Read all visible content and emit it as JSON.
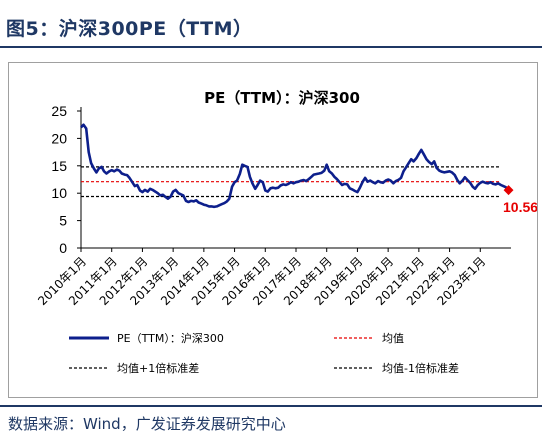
{
  "figure_title": "图5：沪深300PE（TTM）",
  "source_note": "数据来源：Wind，广发证券发展研究中心",
  "colors": {
    "series": "#0d1f8c",
    "mean": "#e60000",
    "band": "#000000",
    "end_marker": "#e60000",
    "title_blue": "#1f3864"
  },
  "chart_data": {
    "type": "line",
    "title": "PE（TTM）：沪深300",
    "xlabel": "",
    "ylabel": "",
    "ylim": [
      0,
      25
    ],
    "yticks": [
      0,
      5,
      10,
      15,
      20,
      25
    ],
    "x_tick_labels": [
      "2010年1月",
      "2011年1月",
      "2012年1月",
      "2013年1月",
      "2014年1月",
      "2015年1月",
      "2016年1月",
      "2017年1月",
      "2018年1月",
      "2019年1月",
      "2020年1月",
      "2021年1月",
      "2022年1月",
      "2023年1月"
    ],
    "x_start_year": 2010,
    "grid": false,
    "legend_position": "bottom",
    "series": [
      {
        "name": "PE（TTM）：沪深300",
        "style": "solid",
        "points": [
          [
            2010.0,
            22.0
          ],
          [
            2010.08,
            22.5
          ],
          [
            2010.17,
            21.8
          ],
          [
            2010.25,
            17.5
          ],
          [
            2010.33,
            15.5
          ],
          [
            2010.42,
            14.5
          ],
          [
            2010.5,
            13.8
          ],
          [
            2010.58,
            14.5
          ],
          [
            2010.67,
            14.8
          ],
          [
            2010.75,
            14.0
          ],
          [
            2010.83,
            13.6
          ],
          [
            2010.92,
            14.0
          ],
          [
            2011.0,
            14.2
          ],
          [
            2011.08,
            14.0
          ],
          [
            2011.17,
            14.3
          ],
          [
            2011.25,
            14.1
          ],
          [
            2011.33,
            13.6
          ],
          [
            2011.42,
            13.4
          ],
          [
            2011.5,
            13.3
          ],
          [
            2011.58,
            12.8
          ],
          [
            2011.67,
            12.0
          ],
          [
            2011.75,
            11.3
          ],
          [
            2011.83,
            11.5
          ],
          [
            2011.92,
            10.5
          ],
          [
            2012.0,
            10.2
          ],
          [
            2012.08,
            10.6
          ],
          [
            2012.17,
            10.3
          ],
          [
            2012.25,
            10.8
          ],
          [
            2012.33,
            10.6
          ],
          [
            2012.42,
            10.3
          ],
          [
            2012.5,
            10.0
          ],
          [
            2012.58,
            9.6
          ],
          [
            2012.67,
            9.7
          ],
          [
            2012.75,
            9.3
          ],
          [
            2012.83,
            9.0
          ],
          [
            2012.92,
            9.4
          ],
          [
            2013.0,
            10.3
          ],
          [
            2013.08,
            10.6
          ],
          [
            2013.17,
            10.0
          ],
          [
            2013.25,
            9.8
          ],
          [
            2013.33,
            9.6
          ],
          [
            2013.42,
            8.6
          ],
          [
            2013.5,
            8.4
          ],
          [
            2013.58,
            8.6
          ],
          [
            2013.67,
            8.5
          ],
          [
            2013.75,
            8.7
          ],
          [
            2013.83,
            8.3
          ],
          [
            2013.92,
            8.1
          ],
          [
            2014.0,
            7.9
          ],
          [
            2014.08,
            7.8
          ],
          [
            2014.17,
            7.6
          ],
          [
            2014.25,
            7.6
          ],
          [
            2014.33,
            7.5
          ],
          [
            2014.42,
            7.6
          ],
          [
            2014.5,
            7.8
          ],
          [
            2014.58,
            8.0
          ],
          [
            2014.67,
            8.2
          ],
          [
            2014.75,
            8.5
          ],
          [
            2014.83,
            9.0
          ],
          [
            2014.92,
            11.2
          ],
          [
            2015.0,
            12.0
          ],
          [
            2015.08,
            12.3
          ],
          [
            2015.17,
            13.5
          ],
          [
            2015.25,
            15.2
          ],
          [
            2015.33,
            15.0
          ],
          [
            2015.42,
            14.8
          ],
          [
            2015.5,
            13.0
          ],
          [
            2015.58,
            11.8
          ],
          [
            2015.67,
            10.8
          ],
          [
            2015.75,
            11.5
          ],
          [
            2015.83,
            12.3
          ],
          [
            2015.92,
            12.0
          ],
          [
            2016.0,
            10.5
          ],
          [
            2016.08,
            10.3
          ],
          [
            2016.17,
            10.9
          ],
          [
            2016.25,
            11.0
          ],
          [
            2016.33,
            10.9
          ],
          [
            2016.42,
            11.0
          ],
          [
            2016.5,
            11.4
          ],
          [
            2016.58,
            11.6
          ],
          [
            2016.67,
            11.5
          ],
          [
            2016.75,
            11.7
          ],
          [
            2016.83,
            12.0
          ],
          [
            2016.92,
            11.8
          ],
          [
            2017.0,
            12.0
          ],
          [
            2017.08,
            12.1
          ],
          [
            2017.17,
            12.3
          ],
          [
            2017.25,
            12.4
          ],
          [
            2017.33,
            12.2
          ],
          [
            2017.42,
            12.6
          ],
          [
            2017.5,
            13.0
          ],
          [
            2017.58,
            13.4
          ],
          [
            2017.67,
            13.5
          ],
          [
            2017.75,
            13.6
          ],
          [
            2017.83,
            13.7
          ],
          [
            2017.92,
            14.1
          ],
          [
            2018.0,
            15.2
          ],
          [
            2018.08,
            14.0
          ],
          [
            2018.17,
            13.6
          ],
          [
            2018.25,
            13.0
          ],
          [
            2018.33,
            12.6
          ],
          [
            2018.42,
            12.0
          ],
          [
            2018.5,
            11.5
          ],
          [
            2018.58,
            11.7
          ],
          [
            2018.67,
            11.6
          ],
          [
            2018.75,
            10.9
          ],
          [
            2018.83,
            10.7
          ],
          [
            2018.92,
            10.4
          ],
          [
            2019.0,
            10.2
          ],
          [
            2019.08,
            11.0
          ],
          [
            2019.17,
            12.1
          ],
          [
            2019.25,
            12.8
          ],
          [
            2019.33,
            12.1
          ],
          [
            2019.42,
            12.3
          ],
          [
            2019.5,
            12.0
          ],
          [
            2019.58,
            11.8
          ],
          [
            2019.67,
            12.2
          ],
          [
            2019.75,
            12.0
          ],
          [
            2019.83,
            11.9
          ],
          [
            2019.92,
            12.3
          ],
          [
            2020.0,
            12.5
          ],
          [
            2020.08,
            12.3
          ],
          [
            2020.17,
            11.8
          ],
          [
            2020.25,
            12.2
          ],
          [
            2020.33,
            12.4
          ],
          [
            2020.42,
            12.8
          ],
          [
            2020.5,
            14.0
          ],
          [
            2020.58,
            14.7
          ],
          [
            2020.67,
            15.5
          ],
          [
            2020.75,
            16.2
          ],
          [
            2020.83,
            15.8
          ],
          [
            2020.92,
            16.4
          ],
          [
            2021.0,
            17.2
          ],
          [
            2021.08,
            17.9
          ],
          [
            2021.17,
            17.0
          ],
          [
            2021.25,
            16.2
          ],
          [
            2021.33,
            15.7
          ],
          [
            2021.42,
            15.3
          ],
          [
            2021.5,
            15.8
          ],
          [
            2021.58,
            14.6
          ],
          [
            2021.67,
            14.1
          ],
          [
            2021.75,
            13.9
          ],
          [
            2021.83,
            13.8
          ],
          [
            2021.92,
            13.9
          ],
          [
            2022.0,
            14.0
          ],
          [
            2022.08,
            13.8
          ],
          [
            2022.17,
            13.3
          ],
          [
            2022.25,
            12.4
          ],
          [
            2022.33,
            11.8
          ],
          [
            2022.42,
            12.3
          ],
          [
            2022.5,
            12.9
          ],
          [
            2022.58,
            12.4
          ],
          [
            2022.67,
            11.9
          ],
          [
            2022.75,
            11.2
          ],
          [
            2022.83,
            10.8
          ],
          [
            2022.92,
            11.5
          ],
          [
            2023.0,
            11.9
          ],
          [
            2023.08,
            12.1
          ],
          [
            2023.17,
            11.9
          ],
          [
            2023.25,
            11.8
          ],
          [
            2023.33,
            12.0
          ],
          [
            2023.42,
            11.7
          ],
          [
            2023.5,
            11.6
          ],
          [
            2023.58,
            11.8
          ],
          [
            2023.67,
            11.5
          ],
          [
            2023.75,
            11.3
          ],
          [
            2023.83,
            11.1
          ],
          [
            2023.92,
            10.56
          ]
        ]
      },
      {
        "name": "均值",
        "style": "dashed",
        "value": 12.1
      },
      {
        "name": "均值+1倍标准差",
        "style": "dashed",
        "value": 14.8
      },
      {
        "name": "均值-1倍标准差",
        "style": "dashed",
        "value": 9.4
      }
    ],
    "annotations": [
      {
        "label": "10.56",
        "x": 2023.92,
        "y": 10.56
      }
    ]
  }
}
